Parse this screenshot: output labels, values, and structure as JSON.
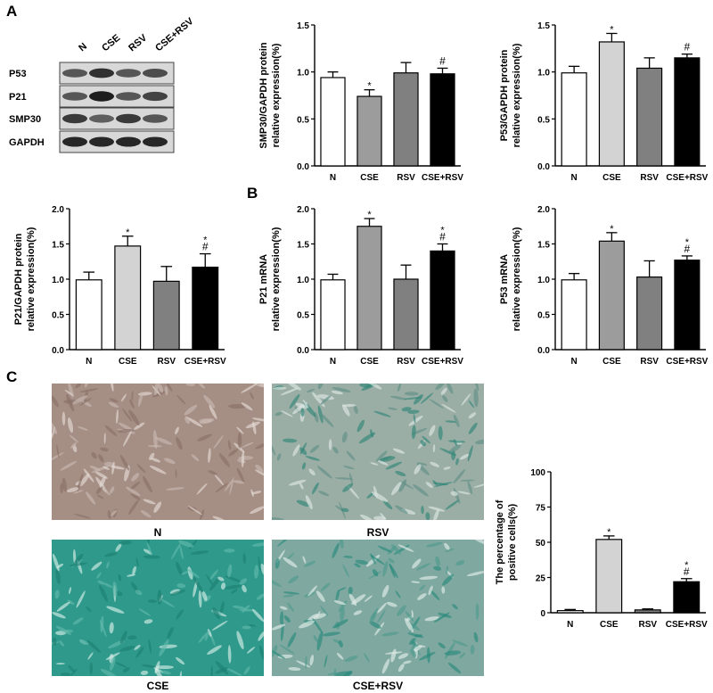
{
  "panel_labels": {
    "a": "A",
    "b": "B",
    "c": "C"
  },
  "blot": {
    "lanes": [
      "N",
      "CSE",
      "RSV",
      "CSE+RSV"
    ],
    "rows": [
      {
        "label": "P53",
        "intensity": [
          0.6,
          0.8,
          0.6,
          0.65
        ]
      },
      {
        "label": "P21",
        "intensity": [
          0.6,
          0.9,
          0.6,
          0.7
        ]
      },
      {
        "label": "SMP30",
        "intensity": [
          0.75,
          0.55,
          0.75,
          0.6
        ]
      },
      {
        "label": "GAPDH",
        "intensity": [
          0.85,
          0.85,
          0.85,
          0.85
        ]
      }
    ]
  },
  "micrographs": {
    "captions": [
      "N",
      "RSV",
      "CSE",
      "CSE+RSV"
    ],
    "colors": {
      "brown": "#a58e84",
      "teal_light": "#9aaea6",
      "teal": "#2f9a8c",
      "teal_mixed": "#7fa8a0"
    }
  },
  "chart_data": [
    {
      "id": "smp30",
      "type": "bar",
      "categories": [
        "N",
        "CSE",
        "RSV",
        "CSE+RSV"
      ],
      "values": [
        0.94,
        0.74,
        0.99,
        0.98
      ],
      "errors": [
        0.06,
        0.07,
        0.11,
        0.06
      ],
      "marks": [
        "",
        "*",
        "",
        "#"
      ],
      "ylabel": [
        "SMP30/GAPDH protein",
        "relative expression(%)"
      ],
      "ylim": [
        0,
        1.5
      ],
      "yticks": [
        "0.0",
        "0.5",
        "1.0",
        "1.5"
      ],
      "colors": [
        "#ffffff",
        "#9c9c9c",
        "#808080",
        "#000000"
      ]
    },
    {
      "id": "p53_protein",
      "type": "bar",
      "categories": [
        "N",
        "CSE",
        "RSV",
        "CSE+RSV"
      ],
      "values": [
        0.99,
        1.32,
        1.04,
        1.15
      ],
      "errors": [
        0.07,
        0.09,
        0.11,
        0.04
      ],
      "marks": [
        "",
        "*",
        "",
        "#"
      ],
      "ylabel": [
        "P53/GAPDH protein",
        "relative expression(%)"
      ],
      "ylim": [
        0,
        1.5
      ],
      "yticks": [
        "0.0",
        "0.5",
        "1.0",
        "1.5"
      ],
      "colors": [
        "#ffffff",
        "#d3d3d3",
        "#808080",
        "#000000"
      ]
    },
    {
      "id": "p21_protein",
      "type": "bar",
      "categories": [
        "N",
        "CSE",
        "RSV",
        "CSE+RSV"
      ],
      "values": [
        0.99,
        1.47,
        0.97,
        1.17
      ],
      "errors": [
        0.11,
        0.14,
        0.21,
        0.19
      ],
      "marks": [
        "",
        "*",
        "",
        "*#"
      ],
      "ylabel": [
        "P21/GAPDH protein",
        "relative expression(%)"
      ],
      "ylim": [
        0,
        2.0
      ],
      "yticks": [
        "0.0",
        "0.5",
        "1.0",
        "1.5",
        "2.0"
      ],
      "colors": [
        "#ffffff",
        "#d3d3d3",
        "#808080",
        "#000000"
      ]
    },
    {
      "id": "p21_mrna",
      "type": "bar",
      "categories": [
        "N",
        "CSE",
        "RSV",
        "CSE+RSV"
      ],
      "values": [
        0.99,
        1.75,
        1.0,
        1.4
      ],
      "errors": [
        0.08,
        0.11,
        0.2,
        0.1
      ],
      "marks": [
        "",
        "*",
        "",
        "*#"
      ],
      "ylabel": [
        "P21 mRNA",
        "relative expression(%)"
      ],
      "ylim": [
        0,
        2.0
      ],
      "yticks": [
        "0.0",
        "0.5",
        "1.0",
        "1.5",
        "2.0"
      ],
      "colors": [
        "#ffffff",
        "#9c9c9c",
        "#808080",
        "#000000"
      ]
    },
    {
      "id": "p53_mrna",
      "type": "bar",
      "categories": [
        "N",
        "CSE",
        "RSV",
        "CSE+RSV"
      ],
      "values": [
        0.99,
        1.54,
        1.03,
        1.27
      ],
      "errors": [
        0.09,
        0.12,
        0.23,
        0.06
      ],
      "marks": [
        "",
        "*",
        "",
        "*#"
      ],
      "ylabel": [
        "P53 mRNA",
        "relative expression(%)"
      ],
      "ylim": [
        0,
        2.0
      ],
      "yticks": [
        "0.0",
        "0.5",
        "1.0",
        "1.5",
        "2.0"
      ],
      "colors": [
        "#ffffff",
        "#9c9c9c",
        "#808080",
        "#000000"
      ]
    },
    {
      "id": "positive_cells",
      "type": "bar",
      "categories": [
        "N",
        "CSE",
        "RSV",
        "CSE+RSV"
      ],
      "values": [
        1.5,
        52,
        2,
        22
      ],
      "errors": [
        0.8,
        2.5,
        0.7,
        2.2
      ],
      "marks": [
        "",
        "*",
        "",
        "*#"
      ],
      "ylabel": [
        "The percentage of",
        "positive cells(%)"
      ],
      "ylim": [
        0,
        100
      ],
      "yticks": [
        "0",
        "25",
        "50",
        "75",
        "100"
      ],
      "colors": [
        "#ffffff",
        "#d3d3d3",
        "#808080",
        "#000000"
      ]
    }
  ]
}
